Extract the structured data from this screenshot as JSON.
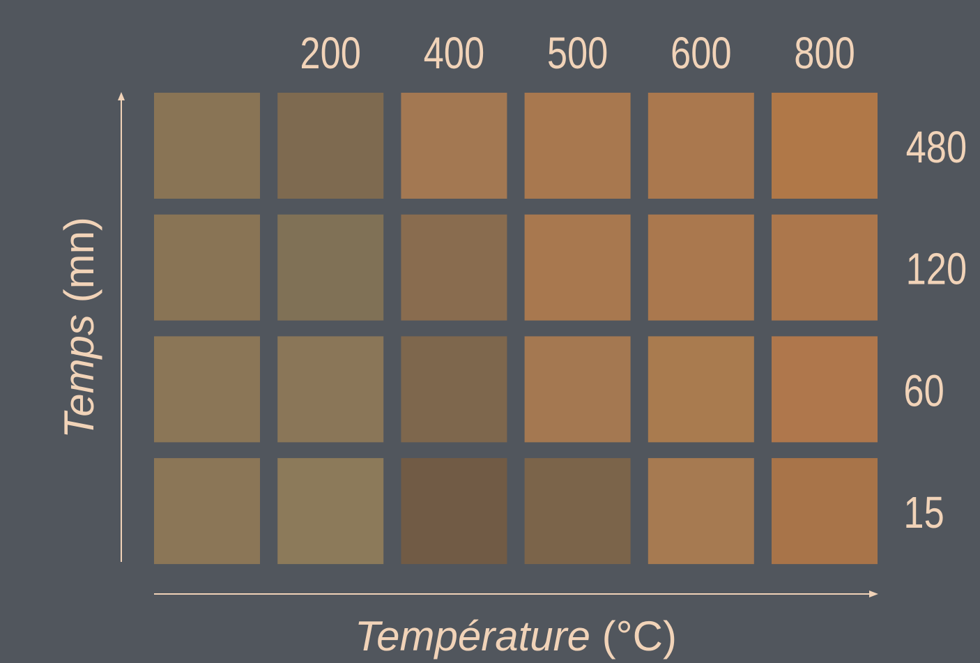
{
  "chart_data": {
    "type": "heatmap",
    "xlabel": {
      "italic_part": "Température",
      "plain_part": " (°C)"
    },
    "ylabel": {
      "italic_part": "Temps",
      "plain_part": " (mn)"
    },
    "column_labels": [
      "",
      "200",
      "400",
      "500",
      "600",
      "800"
    ],
    "rows": [
      {
        "label": "480",
        "colors": [
          "#897455",
          "#7e6a50",
          "#a37852",
          "#a8784f",
          "#aa784e",
          "#b07848"
        ]
      },
      {
        "label": "120",
        "colors": [
          "#897455",
          "#807156",
          "#896c4f",
          "#a8784f",
          "#aa784e",
          "#ac774c"
        ]
      },
      {
        "label": "60",
        "colors": [
          "#8b7657",
          "#8a7658",
          "#7e674d",
          "#a47851",
          "#a97b4f",
          "#af774c"
        ]
      },
      {
        "label": "15",
        "colors": [
          "#8b7657",
          "#8c7a5a",
          "#715b45",
          "#7b644a",
          "#a67a51",
          "#a87449"
        ]
      }
    ],
    "colors": {
      "background": "#51565d",
      "text": "#f1d3b8"
    }
  }
}
